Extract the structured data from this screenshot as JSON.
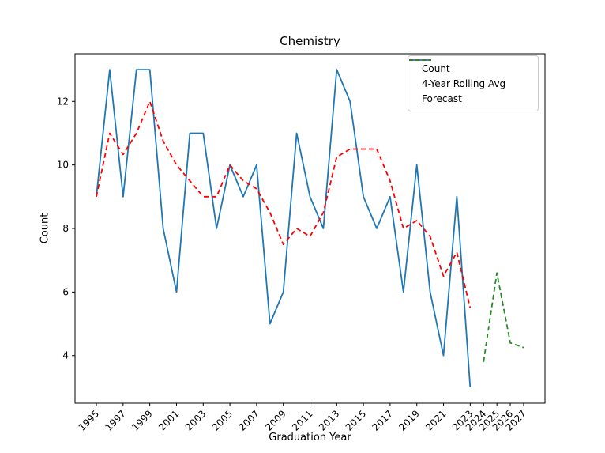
{
  "chart_data": {
    "type": "line",
    "title": "Chemistry",
    "xlabel": "Graduation Year",
    "ylabel": "Count",
    "xlim": [
      1993.4,
      2028.6
    ],
    "ylim": [
      2.5,
      13.5
    ],
    "yticks": [
      4,
      6,
      8,
      10,
      12
    ],
    "xticks": [
      1995,
      1997,
      1999,
      2001,
      2003,
      2005,
      2007,
      2009,
      2011,
      2013,
      2015,
      2017,
      2019,
      2021,
      2023,
      2024,
      2025,
      2026,
      2027
    ],
    "xtick_rotation": 45,
    "grid": false,
    "legend_position": "upper right",
    "axis_color": "#000000",
    "series": [
      {
        "name": "Count",
        "color": "#1f77b4",
        "line_style": "solid",
        "x": [
          1995,
          1996,
          1997,
          1998,
          1999,
          2000,
          2001,
          2002,
          2003,
          2004,
          2005,
          2006,
          2007,
          2008,
          2009,
          2010,
          2011,
          2012,
          2013,
          2014,
          2015,
          2016,
          2017,
          2018,
          2019,
          2020,
          2021,
          2022,
          2023
        ],
        "values": [
          9,
          13,
          9,
          13,
          13,
          8,
          6,
          11,
          11,
          8,
          10,
          9,
          10,
          5,
          6,
          11,
          9,
          8,
          13,
          12,
          9,
          8,
          9,
          6,
          10,
          6,
          4,
          9,
          3
        ]
      },
      {
        "name": "4-Year Rolling Avg",
        "color": "#ff0000",
        "line_style": "dashed",
        "x": [
          1995,
          1996,
          1997,
          1998,
          1999,
          2000,
          2001,
          2002,
          2003,
          2004,
          2005,
          2006,
          2007,
          2008,
          2009,
          2010,
          2011,
          2012,
          2013,
          2014,
          2015,
          2016,
          2017,
          2018,
          2019,
          2020,
          2021,
          2022,
          2023
        ],
        "values": [
          9.0,
          11.0,
          10.33,
          11.0,
          12.0,
          10.75,
          10.0,
          9.5,
          9.0,
          9.0,
          10.0,
          9.5,
          9.25,
          8.5,
          7.5,
          8.0,
          7.75,
          8.5,
          10.25,
          10.5,
          10.5,
          10.5,
          9.5,
          8.0,
          8.25,
          7.75,
          6.5,
          7.25,
          5.5
        ]
      },
      {
        "name": "Forecast",
        "color": "#228B22",
        "line_style": "dashed",
        "x": [
          2024,
          2025,
          2026,
          2027
        ],
        "values": [
          3.8,
          6.6,
          4.4,
          4.25
        ]
      }
    ]
  }
}
